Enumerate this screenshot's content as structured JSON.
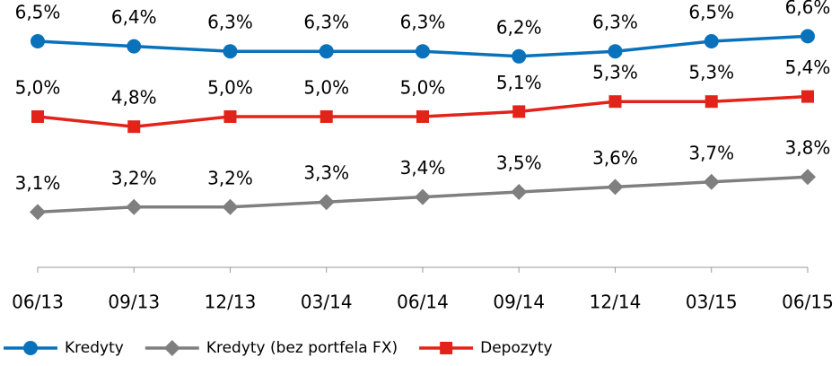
{
  "chart_data": {
    "type": "line",
    "categories": [
      "06/13",
      "09/13",
      "12/13",
      "03/14",
      "06/14",
      "09/14",
      "12/14",
      "03/15",
      "06/15"
    ],
    "ylim": [
      2,
      7.5
    ],
    "legend": "bottom",
    "series": [
      {
        "name": "Kredyty",
        "color": "#0a72ba",
        "marker": "circle",
        "values": [
          6.5,
          6.4,
          6.3,
          6.3,
          6.3,
          6.2,
          6.3,
          6.5,
          6.6
        ],
        "value_labels": [
          "6,5%",
          "6,4%",
          "6,3%",
          "6,3%",
          "6,3%",
          "6,2%",
          "6,3%",
          "6,5%",
          "6,6%"
        ]
      },
      {
        "name": "Kredyty (bez portfela FX)",
        "color": "#7f7f7f",
        "marker": "diamond",
        "values": [
          3.1,
          3.2,
          3.2,
          3.3,
          3.4,
          3.5,
          3.6,
          3.7,
          3.8
        ],
        "value_labels": [
          "3,1%",
          "3,2%",
          "3,2%",
          "3,3%",
          "3,4%",
          "3,5%",
          "3,6%",
          "3,7%",
          "3,8%"
        ]
      },
      {
        "name": "Depozyty",
        "color": "#e2231a",
        "marker": "square",
        "values": [
          5.0,
          4.8,
          5.0,
          5.0,
          5.0,
          5.1,
          5.3,
          5.3,
          5.4
        ],
        "value_labels": [
          "5,0%",
          "4,8%",
          "5,0%",
          "5,0%",
          "5,0%",
          "5,1%",
          "5,3%",
          "5,3%",
          "5,4%"
        ]
      }
    ]
  }
}
